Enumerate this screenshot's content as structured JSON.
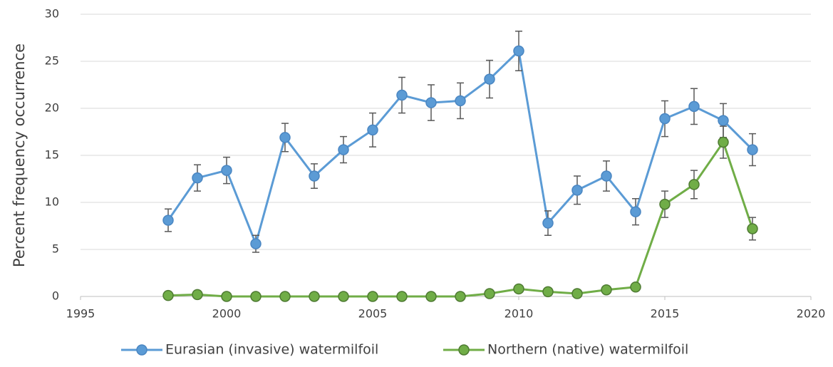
{
  "chart_data": {
    "type": "line",
    "y_label": "Percent frequency occurrence",
    "x": [
      1998,
      1999,
      2000,
      2001,
      2002,
      2003,
      2004,
      2005,
      2006,
      2007,
      2008,
      2009,
      2010,
      2011,
      2012,
      2013,
      2014,
      2015,
      2016,
      2017,
      2018
    ],
    "series": [
      {
        "name": "Eurasian (invasive) watermilfoil",
        "color": "#5b9bd5",
        "values": [
          8.1,
          12.6,
          13.4,
          5.6,
          16.9,
          12.8,
          15.6,
          17.7,
          21.4,
          20.6,
          20.8,
          23.1,
          26.1,
          7.8,
          11.3,
          12.8,
          9.0,
          18.9,
          20.2,
          18.7,
          15.6
        ],
        "errors": [
          1.2,
          1.4,
          1.4,
          0.9,
          1.5,
          1.3,
          1.4,
          1.8,
          1.9,
          1.9,
          1.9,
          2.0,
          2.1,
          1.3,
          1.5,
          1.6,
          1.4,
          1.9,
          1.9,
          1.8,
          1.7
        ]
      },
      {
        "name": "Northern (native) watermilfoil",
        "color": "#70ad47",
        "values": [
          0.1,
          0.2,
          0,
          0,
          0,
          0,
          0,
          0,
          0,
          0,
          0,
          0.3,
          0.8,
          0.5,
          0.3,
          0.7,
          1.0,
          9.8,
          11.9,
          16.4,
          7.2
        ],
        "errors": [
          0.1,
          0.1,
          0,
          0,
          0,
          0,
          0,
          0,
          0,
          0,
          0,
          0.1,
          0.3,
          0.2,
          0.1,
          0.2,
          0.3,
          1.4,
          1.5,
          1.7,
          1.2
        ]
      }
    ],
    "xlim": [
      1995,
      2020
    ],
    "xticks": [
      1995,
      2000,
      2005,
      2010,
      2015,
      2020
    ],
    "ylim": [
      0,
      30
    ],
    "yticks": [
      0,
      5,
      10,
      15,
      20,
      25,
      30
    ],
    "grid": true,
    "legend": "bottom",
    "error_color": "#595959"
  }
}
